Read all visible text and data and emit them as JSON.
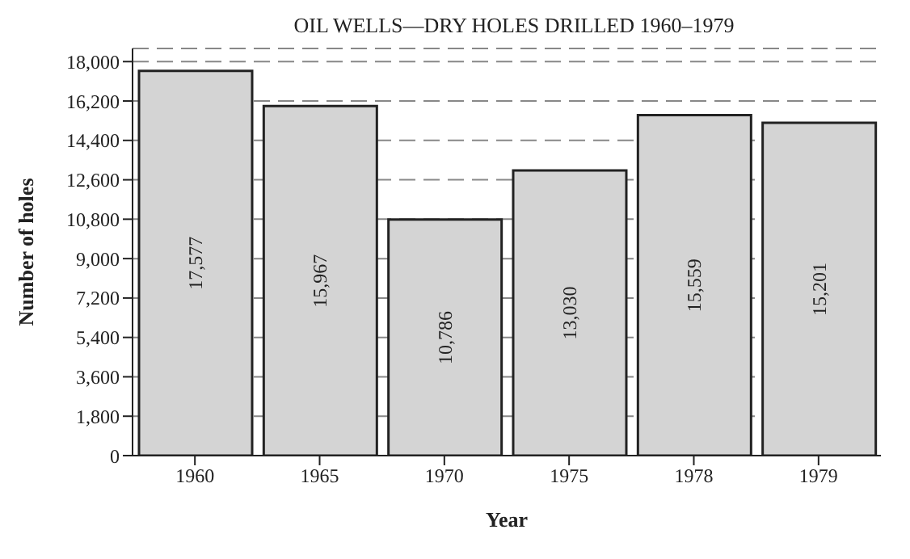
{
  "chart_data": {
    "type": "bar",
    "title": "OIL WELLS—DRY HOLES DRILLED 1960–1979",
    "xlabel": "Year",
    "ylabel": "Number of holes",
    "categories": [
      "1960",
      "1965",
      "1970",
      "1975",
      "1978",
      "1979"
    ],
    "values": [
      17577,
      15967,
      10786,
      13030,
      15559,
      15201
    ],
    "value_labels": [
      "17,577",
      "15,967",
      "10,786",
      "13,030",
      "15,559",
      "15,201"
    ],
    "color": "#d4d4d4",
    "ylim": [
      0,
      18600
    ],
    "yticks": [
      0,
      {
        "value": 1800,
        "label": "1,800"
      },
      {
        "value": 3600,
        "label": "3,600"
      },
      {
        "value": 5400,
        "label": "5,400"
      },
      {
        "value": 7200,
        "label": "7,200"
      },
      {
        "value": 9000,
        "label": "9,000"
      },
      {
        "value": 10800,
        "label": "10,800"
      },
      {
        "value": 12600,
        "label": "12,600"
      },
      {
        "value": 14400,
        "label": "14,400"
      },
      {
        "value": 16200,
        "label": "16,200"
      },
      {
        "value": 18000,
        "label": "18,000"
      }
    ],
    "grid": "y"
  }
}
